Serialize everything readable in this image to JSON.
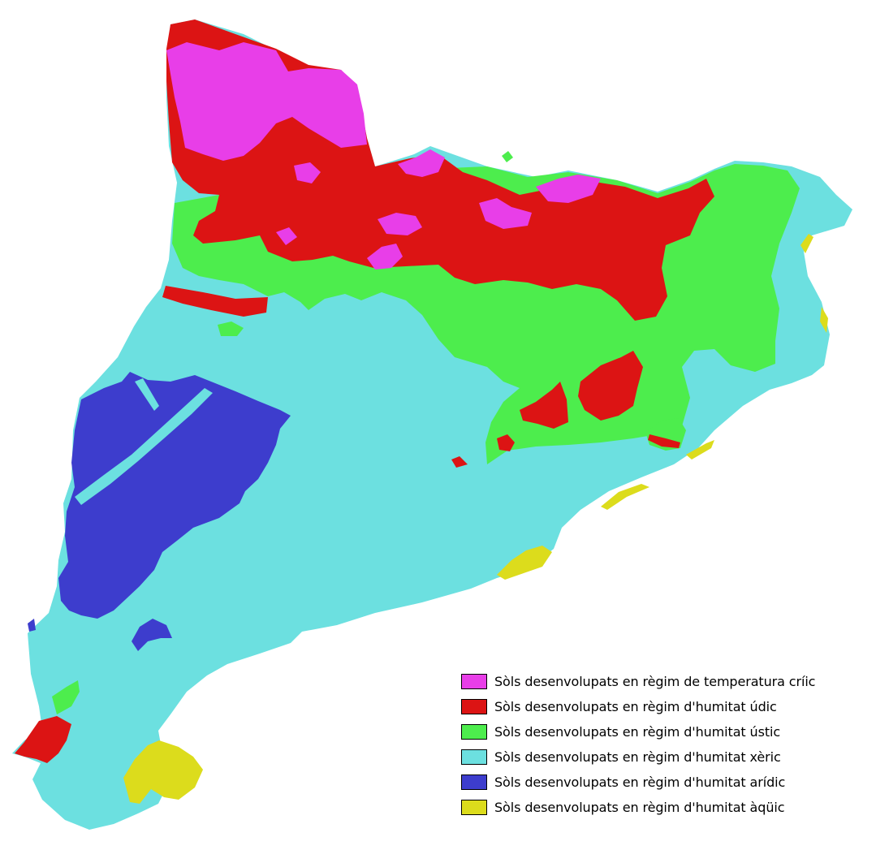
{
  "map": {
    "colors": {
      "cric": "#e83ee8",
      "udic": "#dc1414",
      "ustic": "#4ded4d",
      "xeric": "#6ce0e0",
      "aridic": "#3d3dcd",
      "aquic": "#dcdc1c"
    }
  },
  "legend": {
    "items": [
      {
        "label": "Sòls desenvolupats en règim de temperatura críic",
        "color": "#e83ee8"
      },
      {
        "label": "Sòls desenvolupats en règim d'humitat údic",
        "color": "#dc1414"
      },
      {
        "label": "Sòls desenvolupats en règim d'humitat ústic",
        "color": "#4ded4d"
      },
      {
        "label": "Sòls desenvolupats en règim d'humitat xèric",
        "color": "#6ce0e0"
      },
      {
        "label": "Sòls desenvolupats en règim d'humitat arídic",
        "color": "#3d3dcd"
      },
      {
        "label": "Sòls desenvolupats en règim d'humitat àqüic",
        "color": "#dcdc1c"
      }
    ]
  }
}
